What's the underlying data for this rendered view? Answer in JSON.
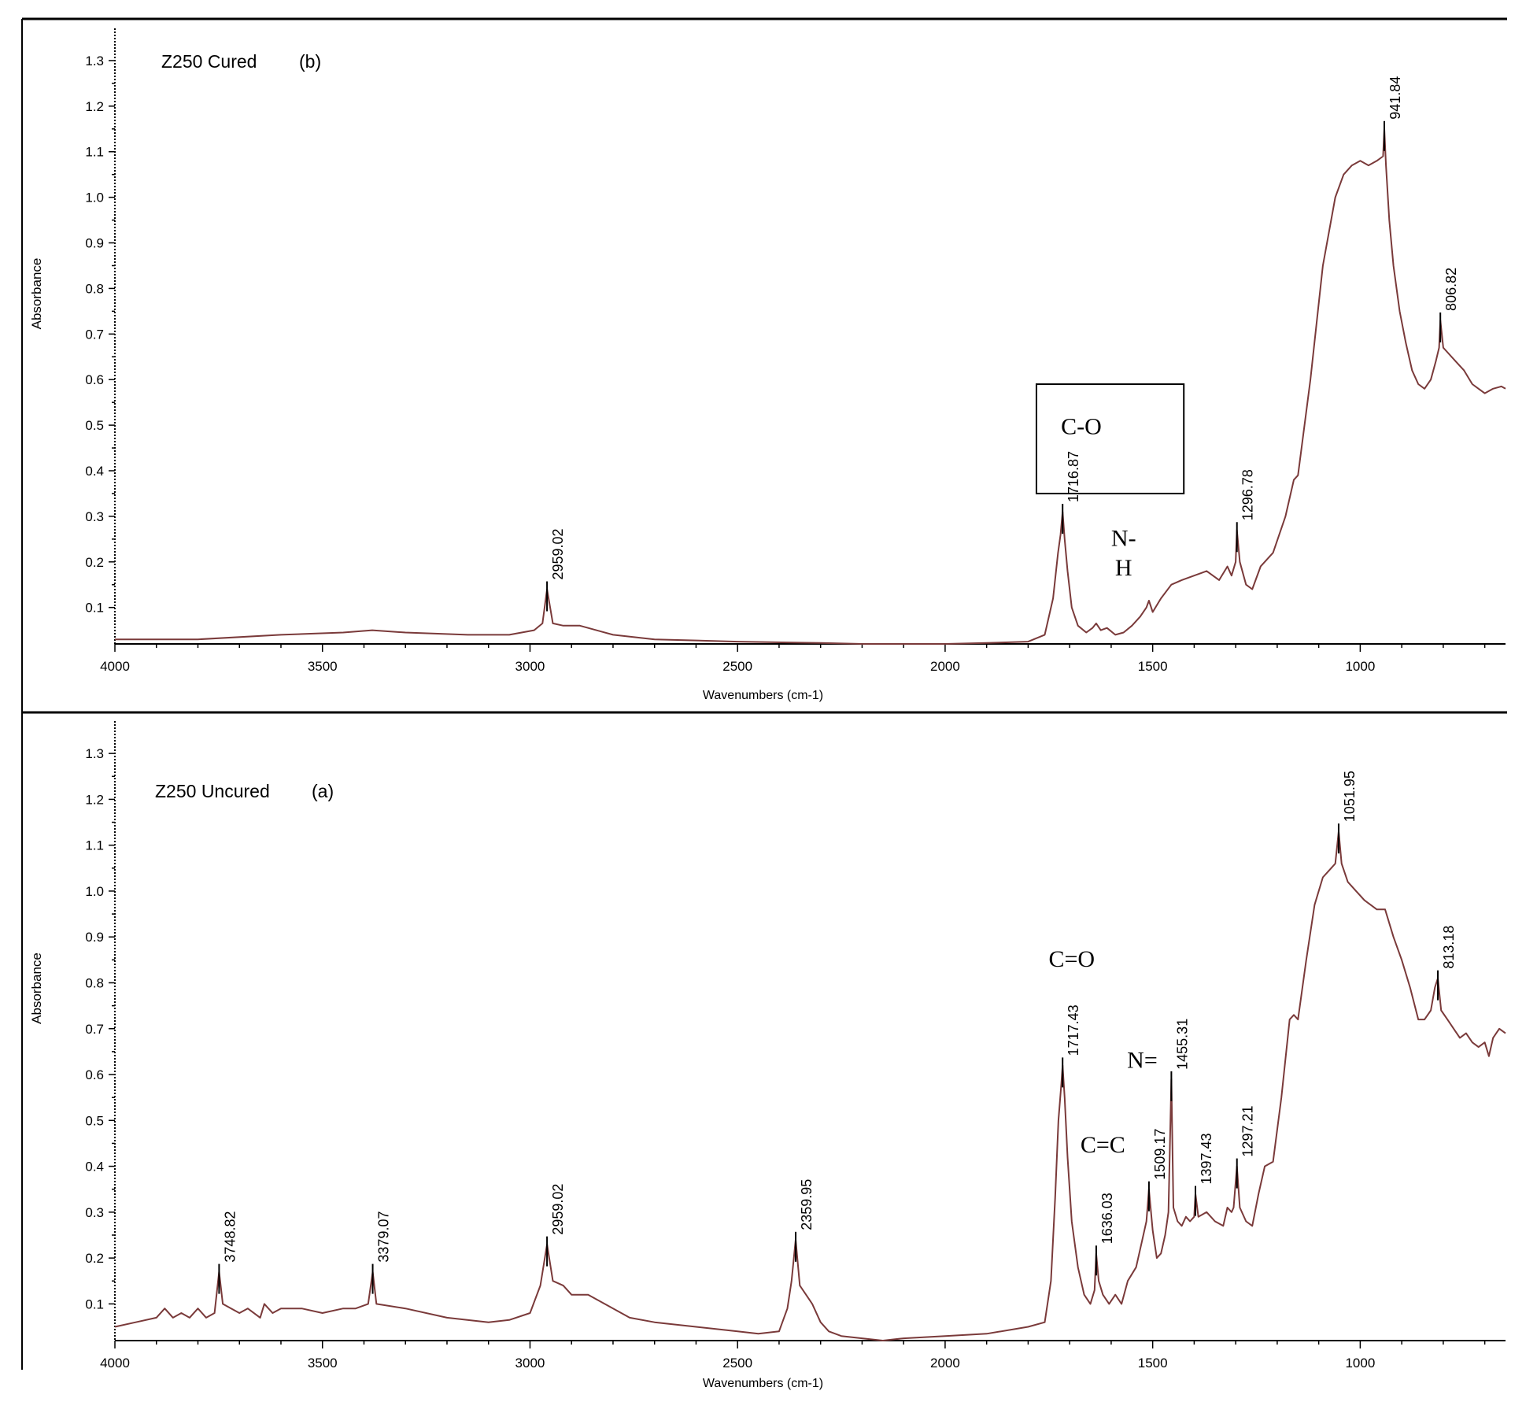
{
  "chart_data": [
    {
      "type": "line",
      "title": "Z250 Cured",
      "panel_tag": "(b)",
      "xlabel": "Wavenumbers (cm-1)",
      "ylabel": "Absorbance",
      "xlim": [
        4000,
        650
      ],
      "ylim": [
        0.02,
        1.35
      ],
      "x_reversed": true,
      "grid": false,
      "line_color": "#7a3a3a",
      "xticks": [
        "4000",
        "3500",
        "3000",
        "2500",
        "2000",
        "1500",
        "1000"
      ],
      "yticks": [
        "0.1",
        "0.2",
        "0.3",
        "0.4",
        "0.5",
        "0.6",
        "0.7",
        "0.8",
        "0.9",
        "1.0",
        "1.1",
        "1.2",
        "1.3"
      ],
      "x": [
        4000,
        3800,
        3600,
        3450,
        3380,
        3300,
        3150,
        3050,
        2990,
        2970,
        2959,
        2945,
        2920,
        2880,
        2860,
        2800,
        2700,
        2500,
        2300,
        2200,
        2100,
        2000,
        1900,
        1800,
        1760,
        1740,
        1728,
        1722,
        1717,
        1712,
        1705,
        1695,
        1680,
        1660,
        1645,
        1636,
        1625,
        1610,
        1590,
        1570,
        1550,
        1530,
        1515,
        1509,
        1500,
        1480,
        1455,
        1430,
        1400,
        1370,
        1340,
        1320,
        1310,
        1300,
        1297,
        1290,
        1275,
        1260,
        1240,
        1210,
        1180,
        1160,
        1150,
        1120,
        1090,
        1060,
        1040,
        1020,
        1000,
        980,
        960,
        945,
        942,
        938,
        930,
        920,
        905,
        890,
        875,
        860,
        845,
        830,
        818,
        810,
        807,
        800,
        790,
        770,
        750,
        730,
        715,
        700,
        680,
        660,
        650
      ],
      "y": [
        0.03,
        0.03,
        0.04,
        0.045,
        0.05,
        0.045,
        0.04,
        0.04,
        0.05,
        0.065,
        0.14,
        0.065,
        0.06,
        0.06,
        0.055,
        0.04,
        0.03,
        0.025,
        0.022,
        0.02,
        0.02,
        0.02,
        0.022,
        0.025,
        0.04,
        0.12,
        0.22,
        0.26,
        0.31,
        0.25,
        0.18,
        0.1,
        0.06,
        0.045,
        0.055,
        0.065,
        0.05,
        0.055,
        0.04,
        0.045,
        0.06,
        0.08,
        0.1,
        0.115,
        0.09,
        0.12,
        0.15,
        0.16,
        0.17,
        0.18,
        0.16,
        0.19,
        0.17,
        0.2,
        0.27,
        0.2,
        0.15,
        0.14,
        0.19,
        0.22,
        0.3,
        0.38,
        0.39,
        0.6,
        0.85,
        1.0,
        1.05,
        1.07,
        1.08,
        1.07,
        1.08,
        1.09,
        1.15,
        1.07,
        0.95,
        0.85,
        0.75,
        0.68,
        0.62,
        0.59,
        0.58,
        0.6,
        0.64,
        0.67,
        0.73,
        0.67,
        0.66,
        0.64,
        0.62,
        0.59,
        0.58,
        0.57,
        0.58,
        0.585,
        0.58
      ],
      "peak_labels": [
        {
          "x": 2959,
          "label": "2959.02",
          "top": 0.14
        },
        {
          "x": 1717,
          "label": "1716.87",
          "top": 0.31
        },
        {
          "x": 1297,
          "label": "1296.78",
          "top": 0.27
        },
        {
          "x": 942,
          "label": "941.84",
          "top": 1.15
        },
        {
          "x": 807,
          "label": "806.82",
          "top": 0.73
        }
      ],
      "annotations": [
        {
          "text": "C-O",
          "x": 1672,
          "y": 0.48,
          "boxed": true,
          "box_x": [
            1780,
            1425
          ],
          "box_y": [
            0.35,
            0.59
          ]
        },
        {
          "text": "N-",
          "x": 1570,
          "y": 0.235
        },
        {
          "text": "H",
          "x": 1570,
          "y": 0.17
        }
      ]
    },
    {
      "type": "line",
      "title": "Z250 Uncured",
      "panel_tag": "(a)",
      "xlabel": "Wavenumbers (cm-1)",
      "ylabel": "Absorbance",
      "xlim": [
        4000,
        650
      ],
      "ylim": [
        0.02,
        1.35
      ],
      "x_reversed": true,
      "grid": false,
      "line_color": "#7a3a3a",
      "xticks": [
        "4000",
        "3500",
        "3000",
        "2500",
        "2000",
        "1500",
        "1000"
      ],
      "yticks": [
        "0.1",
        "0.2",
        "0.3",
        "0.4",
        "0.5",
        "0.6",
        "0.7",
        "0.8",
        "0.9",
        "1.0",
        "1.1",
        "1.2",
        "1.3"
      ],
      "x": [
        4000,
        3950,
        3900,
        3880,
        3860,
        3840,
        3820,
        3800,
        3780,
        3760,
        3749,
        3740,
        3720,
        3700,
        3680,
        3650,
        3640,
        3620,
        3600,
        3550,
        3500,
        3450,
        3420,
        3390,
        3379,
        3370,
        3300,
        3200,
        3100,
        3050,
        3000,
        2975,
        2959,
        2945,
        2920,
        2900,
        2880,
        2860,
        2820,
        2760,
        2700,
        2600,
        2500,
        2450,
        2400,
        2380,
        2370,
        2360,
        2350,
        2335,
        2320,
        2300,
        2280,
        2250,
        2200,
        2150,
        2100,
        2000,
        1900,
        1800,
        1760,
        1745,
        1735,
        1727,
        1720,
        1717,
        1712,
        1705,
        1695,
        1680,
        1665,
        1650,
        1640,
        1636,
        1630,
        1620,
        1605,
        1590,
        1575,
        1560,
        1540,
        1525,
        1515,
        1509,
        1500,
        1490,
        1480,
        1470,
        1462,
        1455,
        1450,
        1440,
        1430,
        1420,
        1410,
        1400,
        1397,
        1390,
        1370,
        1350,
        1330,
        1320,
        1310,
        1305,
        1297,
        1290,
        1275,
        1260,
        1245,
        1230,
        1210,
        1190,
        1170,
        1160,
        1150,
        1130,
        1110,
        1090,
        1070,
        1060,
        1052,
        1045,
        1030,
        1010,
        990,
        975,
        960,
        940,
        920,
        900,
        880,
        860,
        845,
        830,
        820,
        813,
        805,
        790,
        775,
        760,
        745,
        730,
        715,
        700,
        690,
        680,
        665,
        650
      ],
      "y": [
        0.05,
        0.06,
        0.07,
        0.09,
        0.07,
        0.08,
        0.07,
        0.09,
        0.07,
        0.08,
        0.17,
        0.1,
        0.09,
        0.08,
        0.09,
        0.07,
        0.1,
        0.08,
        0.09,
        0.09,
        0.08,
        0.09,
        0.09,
        0.1,
        0.17,
        0.1,
        0.09,
        0.07,
        0.06,
        0.065,
        0.08,
        0.14,
        0.23,
        0.15,
        0.14,
        0.12,
        0.12,
        0.12,
        0.1,
        0.07,
        0.06,
        0.05,
        0.04,
        0.035,
        0.04,
        0.09,
        0.15,
        0.24,
        0.14,
        0.12,
        0.1,
        0.06,
        0.04,
        0.03,
        0.025,
        0.02,
        0.025,
        0.03,
        0.035,
        0.05,
        0.06,
        0.15,
        0.33,
        0.5,
        0.58,
        0.62,
        0.55,
        0.42,
        0.28,
        0.18,
        0.12,
        0.1,
        0.13,
        0.21,
        0.15,
        0.12,
        0.1,
        0.12,
        0.1,
        0.15,
        0.18,
        0.24,
        0.28,
        0.35,
        0.26,
        0.2,
        0.21,
        0.25,
        0.3,
        0.59,
        0.31,
        0.28,
        0.27,
        0.29,
        0.28,
        0.29,
        0.34,
        0.29,
        0.3,
        0.28,
        0.27,
        0.31,
        0.3,
        0.31,
        0.4,
        0.31,
        0.28,
        0.27,
        0.34,
        0.4,
        0.41,
        0.55,
        0.72,
        0.73,
        0.72,
        0.85,
        0.97,
        1.03,
        1.05,
        1.06,
        1.13,
        1.06,
        1.02,
        1.0,
        0.98,
        0.97,
        0.96,
        0.96,
        0.9,
        0.85,
        0.79,
        0.72,
        0.72,
        0.74,
        0.79,
        0.81,
        0.74,
        0.72,
        0.7,
        0.68,
        0.69,
        0.67,
        0.66,
        0.67,
        0.64,
        0.68,
        0.7,
        0.69
      ],
      "peak_labels": [
        {
          "x": 3749,
          "label": "3748.82",
          "top": 0.17
        },
        {
          "x": 3379,
          "label": "3379.07",
          "top": 0.17
        },
        {
          "x": 2959,
          "label": "2959.02",
          "top": 0.23
        },
        {
          "x": 2360,
          "label": "2359.95",
          "top": 0.24
        },
        {
          "x": 1717,
          "label": "1717.43",
          "top": 0.62
        },
        {
          "x": 1636,
          "label": "1636.03",
          "top": 0.21
        },
        {
          "x": 1509,
          "label": "1509.17",
          "top": 0.35
        },
        {
          "x": 1455,
          "label": "1455.31",
          "top": 0.59
        },
        {
          "x": 1397,
          "label": "1397.43",
          "top": 0.34
        },
        {
          "x": 1297,
          "label": "1297.21",
          "top": 0.4
        },
        {
          "x": 1052,
          "label": "1051.95",
          "top": 1.13
        },
        {
          "x": 813,
          "label": "813.18",
          "top": 0.81
        }
      ],
      "annotations": [
        {
          "text": "C=O",
          "x": 1695,
          "y": 0.835
        },
        {
          "text": "C=C",
          "x": 1620,
          "y": 0.43
        },
        {
          "text": "N=",
          "x": 1525,
          "y": 0.615
        }
      ]
    }
  ]
}
